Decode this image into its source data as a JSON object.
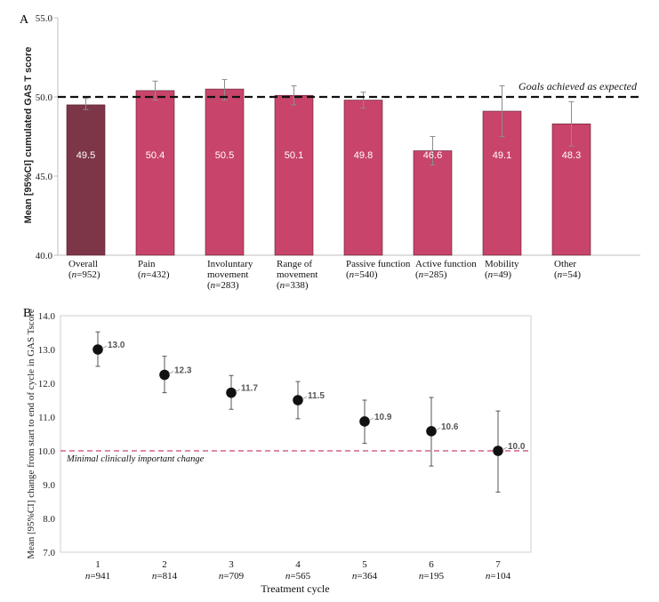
{
  "chart_data": [
    {
      "panel_label": "A",
      "type": "bar",
      "ylabel": "Mean [95%CI] cumulated GAS T score",
      "ylim": [
        40,
        55
      ],
      "yticks": [
        "40.0",
        "45.0",
        "50.0",
        "55.0"
      ],
      "reference_line": {
        "value": 50.0,
        "label": "Goals achieved as expected"
      },
      "categories": [
        {
          "name_lines": [
            "Overall"
          ],
          "n": "952"
        },
        {
          "name_lines": [
            "Pain"
          ],
          "n": "432"
        },
        {
          "name_lines": [
            "Involuntary",
            "movement"
          ],
          "n": "283"
        },
        {
          "name_lines": [
            "Range of",
            "movement"
          ],
          "n": "338"
        },
        {
          "name_lines": [
            "Passive function"
          ],
          "n": "540"
        },
        {
          "name_lines": [
            "Active function"
          ],
          "n": "285"
        },
        {
          "name_lines": [
            "Mobility"
          ],
          "n": "49"
        },
        {
          "name_lines": [
            "Other"
          ],
          "n": "54"
        }
      ],
      "values": [
        49.5,
        50.4,
        50.5,
        50.1,
        49.8,
        46.6,
        49.1,
        48.3
      ],
      "value_labels": [
        "49.5",
        "50.4",
        "50.5",
        "50.1",
        "49.8",
        "46.6",
        "49.1",
        "48.3"
      ],
      "ci_low": [
        49.2,
        49.8,
        49.8,
        49.5,
        49.3,
        45.7,
        47.5,
        46.9
      ],
      "ci_high": [
        49.9,
        51.0,
        51.1,
        50.7,
        50.3,
        47.5,
        50.7,
        49.7
      ],
      "colors": [
        "#7d3548",
        "#c9446a",
        "#c9446a",
        "#c9446a",
        "#c9446a",
        "#c9446a",
        "#c9446a",
        "#c9446a"
      ],
      "grid": false
    },
    {
      "panel_label": "B",
      "type": "scatter",
      "ylabel": "Mean [95%CI] change from start to end of cycle in GAS Tscore",
      "xlabel": "Treatment cycle",
      "ylim": [
        7,
        14
      ],
      "yticks": [
        "7.0",
        "8.0",
        "9.0",
        "10.0",
        "11.0",
        "12.0",
        "13.0",
        "14.0"
      ],
      "x": [
        "1",
        "2",
        "3",
        "4",
        "5",
        "6",
        "7"
      ],
      "n": [
        "941",
        "814",
        "709",
        "565",
        "364",
        "195",
        "104"
      ],
      "values": [
        13.0,
        12.25,
        11.72,
        11.5,
        10.87,
        10.58,
        10.0
      ],
      "value_labels": [
        "13.0",
        "12.3",
        "11.7",
        "11.5",
        "10.9",
        "10.6",
        "10.0"
      ],
      "ci_low": [
        12.5,
        11.72,
        11.23,
        10.95,
        10.22,
        9.55,
        8.78
      ],
      "ci_high": [
        13.52,
        12.8,
        12.23,
        12.05,
        11.5,
        11.58,
        11.18
      ],
      "reference_line": {
        "value": 10.0,
        "label": "Minimal clinically important change"
      },
      "grid": false
    }
  ],
  "colors": {
    "bar_overall": "#7d3548",
    "bar_domain": "#c9446a",
    "mcic_line": "#c9446a",
    "point": "#111111"
  }
}
